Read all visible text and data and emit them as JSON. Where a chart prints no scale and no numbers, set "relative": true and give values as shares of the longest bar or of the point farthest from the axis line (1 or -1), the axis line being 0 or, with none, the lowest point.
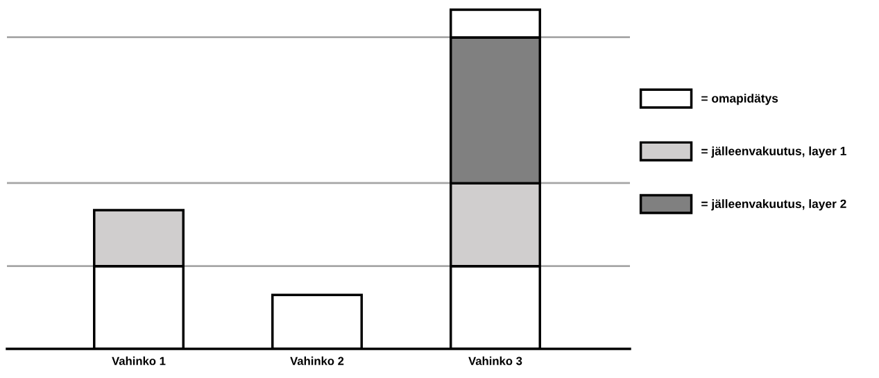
{
  "chart_data": {
    "type": "bar",
    "relative": true,
    "stacked": true,
    "categories": [
      "Vahinko 1",
      "Vahinko 2",
      "Vahinko 3"
    ],
    "series": [
      {
        "name": "= omapidätys",
        "color": "#ffffff",
        "values": [
          0.244,
          0.159,
          0.244
        ]
      },
      {
        "name": "= jälleenvakuutus, layer 1",
        "color": "#d0cece",
        "values": [
          0.165,
          null,
          0.244
        ]
      },
      {
        "name": "= jälleenvakuutus, layer 2",
        "color": "#808080",
        "values": [
          null,
          null,
          0.43
        ]
      },
      {
        "color": "#ffffff",
        "values": [
          null,
          null,
          0.082
        ]
      }
    ],
    "ref_lines": [
      {
        "axis": "y",
        "value": 0.244,
        "color": "#a6a6a6"
      },
      {
        "axis": "y",
        "value": 0.489,
        "color": "#a6a6a6"
      },
      {
        "axis": "y",
        "value": 0.919,
        "color": "#a6a6a6"
      }
    ],
    "legend": "right",
    "tick_labels": "x",
    "grid": false
  }
}
